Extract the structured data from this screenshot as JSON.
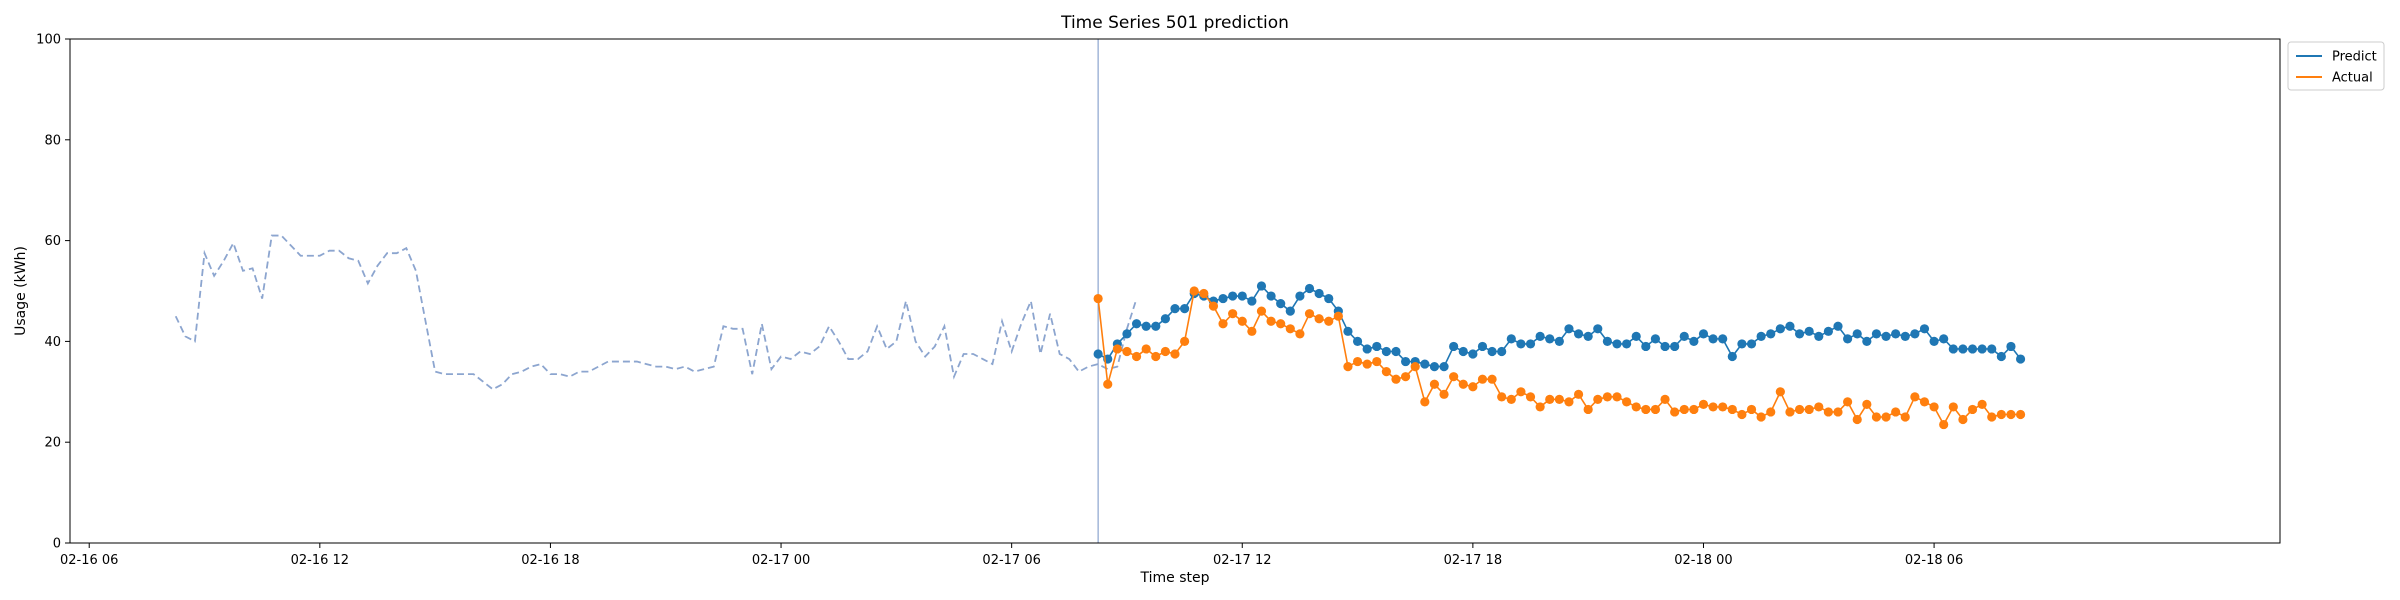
{
  "chart_data": {
    "type": "line",
    "title": "Time Series 501 prediction",
    "xlabel": "Time step",
    "ylabel": "Usage (kWh)",
    "ylim": [
      0,
      100
    ],
    "xlim": [
      "2024-02-16 05:30",
      "2024-02-18 15:00"
    ],
    "y_ticks": [
      0,
      20,
      40,
      60,
      80,
      100
    ],
    "x_ticks": [
      {
        "value": "2024-02-16 06:00",
        "label": "02-16 06"
      },
      {
        "value": "2024-02-16 12:00",
        "label": "02-16 12"
      },
      {
        "value": "2024-02-16 18:00",
        "label": "02-16 18"
      },
      {
        "value": "2024-02-17 00:00",
        "label": "02-17 00"
      },
      {
        "value": "2024-02-17 06:00",
        "label": "02-17 06"
      },
      {
        "value": "2024-02-17 12:00",
        "label": "02-17 12"
      },
      {
        "value": "2024-02-17 18:00",
        "label": "02-17 18"
      },
      {
        "value": "2024-02-18 00:00",
        "label": "02-18 00"
      },
      {
        "value": "2024-02-18 06:00",
        "label": "02-18 06"
      }
    ],
    "legend_position": "top-right outside",
    "vertical_line": {
      "x": "2024-02-17 08:15",
      "color": "#8ca5cf"
    },
    "history": {
      "start": "2024-02-16 08:15",
      "step_minutes": 15,
      "color": "#8ca5cf",
      "style": "dashed",
      "values": [
        45,
        41,
        40,
        57.5,
        53,
        56,
        59.5,
        54,
        54.5,
        48.5,
        61,
        61,
        59,
        57,
        57,
        57,
        58,
        58,
        56.5,
        56,
        51.5,
        55,
        57.5,
        57.5,
        58.5,
        54,
        44,
        34,
        33.5,
        33.5,
        33.5,
        33.5,
        32,
        30.5,
        31.5,
        33.5,
        34,
        35,
        35.5,
        33.5,
        33.5,
        33,
        34,
        34,
        35,
        36,
        36,
        36,
        36,
        35.5,
        35,
        35,
        34.5,
        35,
        34,
        34.5,
        35,
        43,
        42.5,
        42.5,
        33.5,
        43.5,
        34.5,
        37,
        36.5,
        38,
        37.5,
        39,
        43,
        40,
        36.5,
        36.5,
        38,
        43,
        38.5,
        40,
        48,
        40,
        37,
        39,
        43,
        33,
        37.5,
        37.5,
        36.5,
        35.5,
        44,
        38,
        43.5,
        48,
        37.5,
        45.5,
        37.5,
        36.5,
        34,
        35,
        35.5,
        34.5,
        35,
        42.5,
        48.5
      ]
    },
    "series": [
      {
        "name": "Predict",
        "color": "#1f77b4",
        "start": "2024-02-17 08:15",
        "step_minutes": 15,
        "values": [
          37.5,
          36.5,
          39.5,
          41.5,
          43.5,
          43,
          43,
          44.5,
          46.5,
          46.5,
          49.5,
          49,
          48,
          48.5,
          49,
          49,
          48,
          51,
          49,
          47.5,
          46,
          49,
          50.5,
          49.5,
          48.5,
          46,
          42,
          40,
          38.5,
          39,
          38,
          38,
          36,
          36,
          35.5,
          35,
          35,
          39,
          38,
          37.5,
          39,
          38,
          38,
          40.5,
          39.5,
          39.5,
          41,
          40.5,
          40,
          42.5,
          41.5,
          41,
          42.5,
          40,
          39.5,
          39.5,
          41,
          39,
          40.5,
          39,
          39,
          41,
          40,
          41.5,
          40.5,
          40.5,
          37,
          39.5,
          39.5,
          41,
          41.5,
          42.5,
          43,
          41.5,
          42,
          41,
          42,
          43,
          40.5,
          41.5,
          40,
          41.5,
          41,
          41.5,
          41,
          41.5,
          42.5,
          40,
          40.5,
          38.5,
          38.5,
          38.5,
          38.5,
          38.5,
          37,
          39,
          36.5
        ]
      },
      {
        "name": "Actual",
        "color": "#ff7f0e",
        "start": "2024-02-17 08:15",
        "step_minutes": 15,
        "values": [
          48.5,
          31.5,
          38.5,
          38,
          37,
          38.5,
          37,
          38,
          37.5,
          40,
          50,
          49.5,
          47,
          43.5,
          45.5,
          44,
          42,
          46,
          44,
          43.5,
          42.5,
          41.5,
          45.5,
          44.5,
          44,
          45,
          35,
          36,
          35.5,
          36,
          34,
          32.5,
          33,
          35,
          28,
          31.5,
          29.5,
          33,
          31.5,
          31,
          32.5,
          32.5,
          29,
          28.5,
          30,
          29,
          27,
          28.5,
          28.5,
          28,
          29.5,
          26.5,
          28.5,
          29,
          29,
          28,
          27,
          26.5,
          26.5,
          28.5,
          26,
          26.5,
          26.5,
          27.5,
          27,
          27,
          26.5,
          25.5,
          26.5,
          25,
          26,
          30,
          26,
          26.5,
          26.5,
          27,
          26,
          26,
          28,
          24.5,
          27.5,
          25,
          25,
          26,
          25,
          29,
          28,
          27,
          23.5,
          27,
          24.5,
          26.5,
          27.5,
          25,
          25.5,
          25.5,
          25.5
        ]
      }
    ]
  }
}
